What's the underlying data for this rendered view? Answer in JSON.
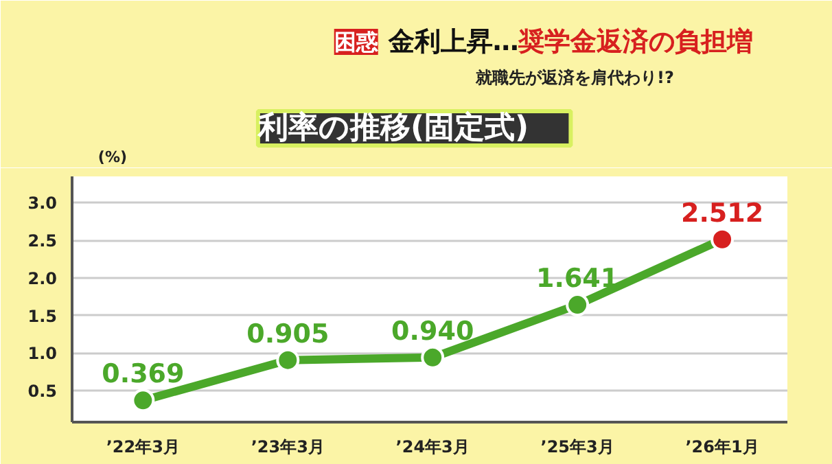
{
  "chart_data": {
    "type": "line",
    "title": "利率の推移(固定式)",
    "ylabel": "(%)",
    "annotations": [
      "困惑",
      "金利上昇…",
      "奨学金返済の負担増",
      "就職先が返済を肩代わり!?"
    ],
    "categories": [
      "’22年3月",
      "’23年3月",
      "’24年3月",
      "’25年3月",
      "’26年1月"
    ],
    "series": [
      {
        "color": "#4ba82a",
        "colors": [
          "#4ba82a",
          "#4ba82a",
          "#4ba82a",
          "#4ba82a",
          "#d7201f"
        ],
        "values": [
          0.369,
          0.905,
          0.94,
          1.641,
          2.512
        ],
        "value_labels": [
          "0.369",
          "0.905",
          "0.940",
          "1.641",
          "2.512"
        ]
      }
    ],
    "ylim": [
      0.08,
      3.35
    ],
    "yticks": [
      0.5,
      {
        "value": 1,
        "label": "1.0"
      },
      1.5,
      {
        "value": 2,
        "label": "2.0"
      },
      2.5,
      {
        "value": 3,
        "label": "3.0"
      }
    ],
    "grid": "y",
    "marker": "circle"
  }
}
